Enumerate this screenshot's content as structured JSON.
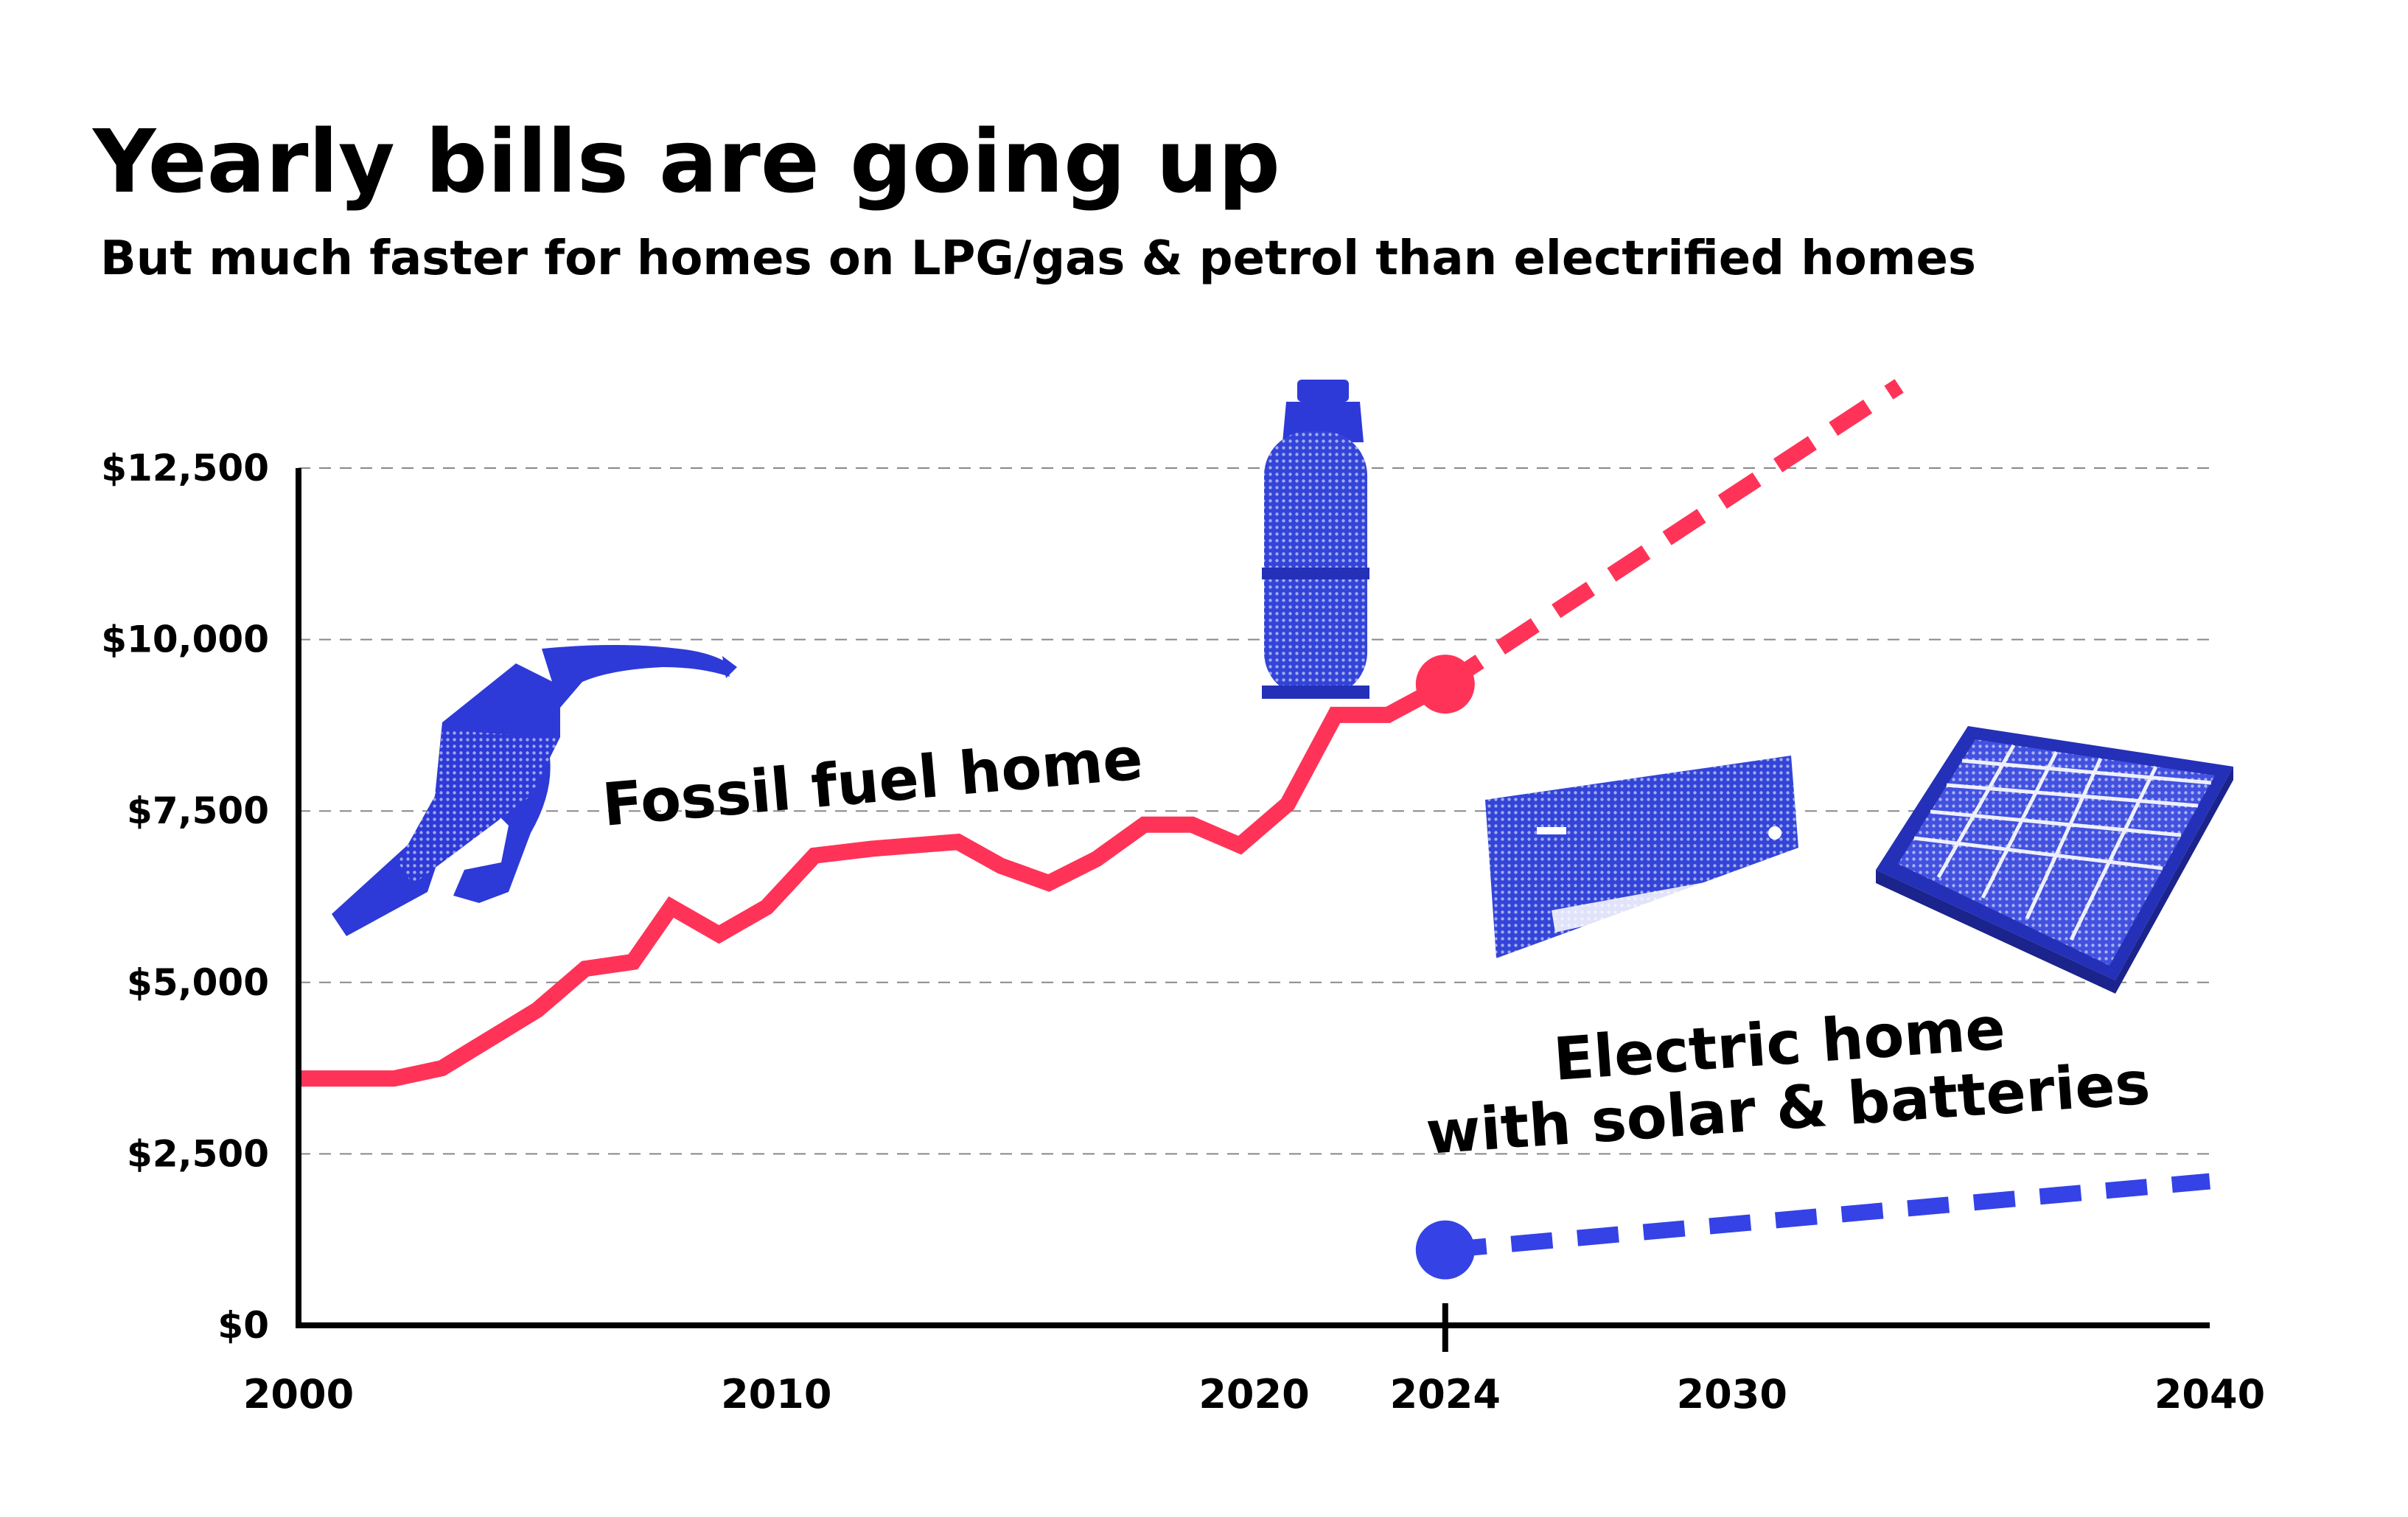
{
  "chart_data": {
    "type": "line",
    "title": "Yearly bills are going up",
    "subtitle": "But much faster for homes on LPG/gas & petrol than electrified homes",
    "xlabel": "",
    "ylabel": "",
    "xlim": [
      2000,
      2040
    ],
    "ylim": [
      0,
      12500
    ],
    "x_ticks": [
      2000,
      2010,
      2020,
      2024,
      2030,
      2040
    ],
    "x_tick_labels": [
      "2000",
      "2010",
      "2020",
      "2024",
      "2030",
      "2040"
    ],
    "y_ticks": [
      0,
      2500,
      5000,
      7500,
      10000,
      12500
    ],
    "y_tick_labels": [
      "$0",
      "$2,500",
      "$5,000",
      "$7,500",
      "$10,000",
      "$12,500"
    ],
    "grid": "horizontal dashed",
    "highlight_year": 2024,
    "series": [
      {
        "name": "Fossil fuel home",
        "color": "#ff3358",
        "style": "solid",
        "x": [
          2000,
          2002,
          2003,
          2005,
          2006,
          2007,
          2007.8,
          2008.8,
          2009.8,
          2010.8,
          2012,
          2013.8,
          2014.7,
          2015.7,
          2016.7,
          2017.7,
          2018.7,
          2019.7,
          2020.7,
          2021.7,
          2022.8,
          2024
        ],
        "values": [
          3600,
          3600,
          3750,
          4600,
          5200,
          5300,
          6100,
          5700,
          6100,
          6850,
          6950,
          7050,
          6700,
          6450,
          6800,
          7300,
          7300,
          7000,
          7600,
          8900,
          8900,
          9350
        ]
      },
      {
        "name": "Fossil fuel home projection",
        "color": "#ff3358",
        "style": "dashed",
        "x": [
          2024,
          2033.5
        ],
        "values": [
          9350,
          13700
        ]
      },
      {
        "name": "Electric home with solar & batteries",
        "color": "#3442e6",
        "style": "dashed",
        "x": [
          2024,
          2040
        ],
        "values": [
          1100,
          2100
        ]
      }
    ],
    "markers": [
      {
        "series": "Fossil fuel home",
        "x": 2024,
        "value": 9350,
        "color": "#ff3358"
      },
      {
        "series": "Electric home with solar & batteries",
        "x": 2024,
        "value": 1100,
        "color": "#3442e6"
      }
    ],
    "annotations": [
      {
        "text": "Fossil fuel home"
      },
      {
        "lines": [
          "Electric home",
          "with solar & batteries"
        ]
      }
    ],
    "icons": [
      "fuel-nozzle-icon",
      "gas-cylinder-icon",
      "air-conditioner-icon",
      "solar-panel-icon"
    ]
  }
}
